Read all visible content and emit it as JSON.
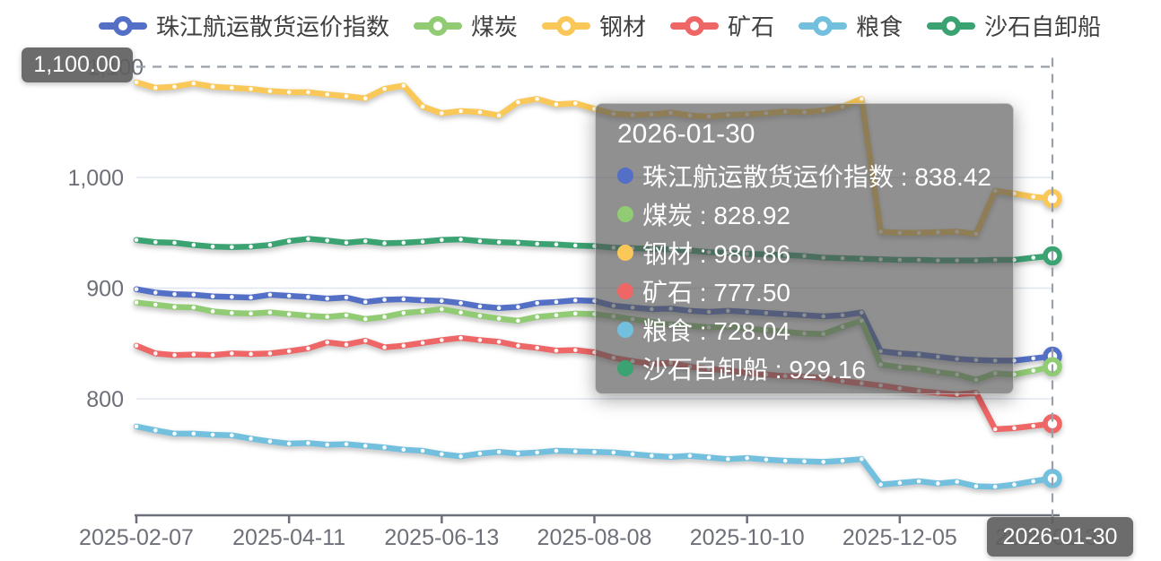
{
  "legend": {
    "items": [
      {
        "label": "珠江航运散货运价指数",
        "color": "#5470C6"
      },
      {
        "label": "煤炭",
        "color": "#91CC75"
      },
      {
        "label": "钢材",
        "color": "#FAC858"
      },
      {
        "label": "矿石",
        "color": "#EE6666"
      },
      {
        "label": "粮食",
        "color": "#73C0DE"
      },
      {
        "label": "沙石自卸船",
        "color": "#3BA272"
      }
    ]
  },
  "tooltip": {
    "title": "2026-01-30",
    "separator": " : ",
    "items": [
      {
        "label": "珠江航运散货运价指数",
        "value": "838.42",
        "color": "#5470C6"
      },
      {
        "label": "煤炭",
        "value": "828.92",
        "color": "#91CC75"
      },
      {
        "label": "钢材",
        "value": "980.86",
        "color": "#FAC858"
      },
      {
        "label": "矿石",
        "value": "777.50",
        "color": "#EE6666"
      },
      {
        "label": "粮食",
        "value": "728.04",
        "color": "#73C0DE"
      },
      {
        "label": "沙石自卸船",
        "value": "929.16",
        "color": "#3BA272"
      }
    ]
  },
  "axis_pointer": {
    "y_label": "1,100.00",
    "x_label": "2026-01-30"
  },
  "chart_data": {
    "type": "line",
    "title": "",
    "xlabel": "",
    "ylabel": "",
    "grid": true,
    "legend_position": "top",
    "x_tick_labels": [
      "2025-02-07",
      "2025-04-11",
      "2025-06-13",
      "2025-08-08",
      "2025-10-10",
      "2025-12-05",
      "2026-01-30"
    ],
    "x_tick_indices": [
      0,
      8,
      16,
      24,
      32,
      40,
      48
    ],
    "point_count": 49,
    "y_ticks": [
      {
        "value": 800,
        "label": "800"
      },
      {
        "value": 900,
        "label": "900"
      },
      {
        "value": 1000,
        "label": "1,000"
      },
      {
        "value": 1100,
        "label": "1,100"
      }
    ],
    "ylim": [
      695,
      1105
    ],
    "crosshair": {
      "x_index": 48,
      "y_value": 1100
    },
    "series": [
      {
        "name": "珠江航运散货运价指数",
        "color": "#5470C6",
        "values": [
          899,
          896,
          894.5,
          894,
          892.5,
          892,
          891.5,
          894,
          893,
          892,
          890.5,
          891.5,
          887.5,
          889.5,
          890,
          889,
          888.5,
          886.5,
          883.5,
          882,
          883,
          886.5,
          887.5,
          889,
          888.5,
          884,
          882.5,
          881,
          881.5,
          879.5,
          878.5,
          879.5,
          878.5,
          877.5,
          876.5,
          875.5,
          874.5,
          875.5,
          878,
          843,
          841,
          840,
          838,
          836,
          835,
          834.5,
          834.5,
          836.5,
          838.42
        ]
      },
      {
        "name": "煤炭",
        "color": "#91CC75",
        "values": [
          887,
          885,
          883,
          882.5,
          879,
          877.5,
          877,
          878,
          876.5,
          875,
          874,
          875.5,
          872,
          874,
          877.5,
          879,
          881,
          878,
          875,
          872.5,
          870.5,
          874,
          875.5,
          877,
          876.5,
          874.5,
          872,
          869.5,
          867,
          866,
          864.5,
          865.5,
          863.5,
          862,
          860.5,
          859,
          858.5,
          865,
          870.5,
          831,
          828.5,
          827,
          824,
          822,
          817,
          823,
          822,
          825.5,
          828.92
        ]
      },
      {
        "name": "钢材",
        "color": "#FAC858",
        "values": [
          1086,
          1081,
          1082,
          1085,
          1082,
          1081,
          1080,
          1078,
          1077,
          1077,
          1075,
          1073.5,
          1071.5,
          1080,
          1083,
          1064,
          1058,
          1060,
          1059,
          1056,
          1068,
          1071,
          1066,
          1067,
          1062,
          1057.5,
          1056.5,
          1057,
          1058.5,
          1056,
          1055,
          1056.5,
          1057,
          1058,
          1059.5,
          1059,
          1060.5,
          1064,
          1071,
          951,
          950,
          950,
          950.5,
          951,
          949,
          988,
          985.5,
          982.5,
          980.86
        ]
      },
      {
        "name": "矿石",
        "color": "#EE6666",
        "values": [
          848,
          841,
          839.5,
          840,
          839.5,
          841,
          840.5,
          841,
          843,
          845.5,
          851,
          849,
          852.5,
          846.5,
          848,
          850.5,
          853,
          855,
          853,
          851.5,
          848,
          846,
          843.5,
          844,
          842,
          837,
          834,
          831.5,
          832.5,
          829,
          827,
          825.5,
          823.5,
          822,
          820.5,
          820,
          818.5,
          816,
          814,
          812,
          809.5,
          807,
          805.5,
          804,
          805.5,
          772.5,
          773.5,
          775.5,
          777.5
        ]
      },
      {
        "name": "粮食",
        "color": "#73C0DE",
        "values": [
          775,
          771.5,
          768.5,
          768.5,
          767.5,
          767,
          764,
          761.5,
          759.5,
          760,
          758.5,
          759,
          757.5,
          756,
          754,
          753,
          750,
          748,
          750.5,
          752,
          750.5,
          751.5,
          753,
          752.5,
          752,
          751.5,
          750,
          748.5,
          747.5,
          748.5,
          747,
          745.5,
          746.5,
          745,
          744,
          743.5,
          743,
          744,
          745.5,
          722.5,
          724,
          725.5,
          723.5,
          725,
          721,
          720.5,
          722.5,
          725.5,
          728.04
        ]
      },
      {
        "name": "沙石自卸船",
        "color": "#3BA272",
        "values": [
          943.5,
          941.5,
          941,
          939,
          937.5,
          937,
          937.5,
          939,
          942.5,
          944.5,
          943,
          941,
          942.5,
          940.5,
          941,
          942,
          943.5,
          944,
          942.5,
          941.5,
          941,
          940,
          939.5,
          938.5,
          938,
          936.5,
          936,
          935.5,
          935,
          934,
          932.5,
          932,
          931,
          930.5,
          930,
          929,
          927.5,
          927,
          926.5,
          926,
          925.5,
          925.5,
          925,
          925,
          925,
          925.5,
          925.5,
          927.5,
          929.16
        ]
      }
    ]
  }
}
